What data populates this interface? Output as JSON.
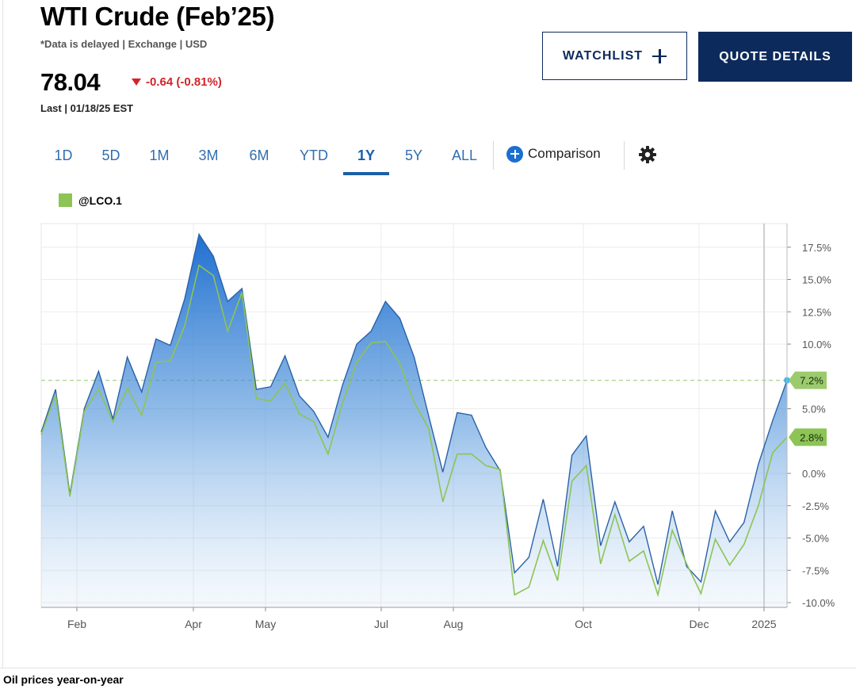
{
  "header": {
    "title": "WTI Crude (Feb’25)",
    "subtitle": "*Data is delayed | Exchange | USD",
    "price": "78.04",
    "change": "-0.64 (-0.81%)",
    "last_time": "Last | 01/18/25 EST"
  },
  "buttons": {
    "watchlist": "WATCHLIST",
    "quote_details": "QUOTE DETAILS"
  },
  "colors": {
    "navy": "#0d2a5c",
    "down": "#d0262b",
    "blue_series": "#2a6fc4",
    "green_series": "#8cc455",
    "tab_blue": "#2f6fb0"
  },
  "icons": {
    "watchlist": "plus-icon",
    "comparison": "circle-plus-icon",
    "settings": "gear-icon",
    "change": "down-triangle-icon"
  },
  "tabs": [
    {
      "label": "1D",
      "active": false
    },
    {
      "label": "5D",
      "active": false
    },
    {
      "label": "1M",
      "active": false
    },
    {
      "label": "3M",
      "active": false
    },
    {
      "label": "6M",
      "active": false
    },
    {
      "label": "YTD",
      "active": false
    },
    {
      "label": "1Y",
      "active": true
    },
    {
      "label": "5Y",
      "active": false
    },
    {
      "label": "ALL",
      "active": false
    }
  ],
  "comparison_label": "Comparison",
  "legend": {
    "label": "@LCO.1"
  },
  "caption": "Oil prices year-on-year",
  "chart_data": {
    "type": "area",
    "ylim": [
      -10,
      17.5
    ],
    "yticks": [
      17.5,
      15,
      12.5,
      10,
      5,
      0,
      -2.5,
      -5,
      -7.5,
      -10
    ],
    "ytick_labels": [
      "17.5%",
      "15.0%",
      "12.5%",
      "10.0%",
      "5.0%",
      "0.0%",
      "-2.5%",
      "-5.0%",
      "-7.5%",
      "-10.0%"
    ],
    "x_tick_labels": [
      "Feb",
      "Apr",
      "May",
      "Jul",
      "Aug",
      "Oct",
      "Dec",
      "2025"
    ],
    "grid": true,
    "series": [
      {
        "style": "area",
        "values": [
          3.2,
          6.5,
          -1.6,
          5.0,
          7.9,
          4.2,
          9.0,
          6.3,
          10.4,
          9.9,
          13.5,
          18.5,
          16.8,
          13.3,
          14.3,
          6.5,
          6.7,
          9.1,
          6.0,
          4.8,
          2.8,
          6.8,
          10.0,
          11.0,
          13.3,
          12.0,
          9.0,
          4.5,
          0.1,
          4.7,
          4.5,
          2.0,
          0.2,
          -7.7,
          -6.5,
          -2.0,
          -7.2,
          1.4,
          2.9,
          -5.6,
          -2.2,
          -5.3,
          -4.1,
          -8.6,
          -2.9,
          -7.2,
          -8.4,
          -2.9,
          -5.3,
          -3.8,
          0.7,
          4.1,
          7.2
        ],
        "last_label": "7.2%"
      },
      {
        "name": "@LCO.1",
        "style": "line",
        "values": [
          3.0,
          6.1,
          -1.8,
          4.8,
          6.5,
          4.0,
          6.6,
          4.5,
          8.6,
          8.7,
          11.4,
          16.1,
          15.3,
          11.0,
          14.0,
          5.8,
          5.6,
          7.0,
          4.6,
          4.0,
          1.5,
          5.4,
          8.6,
          10.1,
          10.2,
          8.5,
          5.5,
          3.5,
          -2.2,
          1.5,
          1.5,
          0.6,
          0.3,
          -9.4,
          -8.8,
          -5.2,
          -8.3,
          -0.6,
          0.6,
          -7.0,
          -3.2,
          -6.8,
          -6.0,
          -9.4,
          -4.4,
          -7.0,
          -9.3,
          -5.1,
          -7.1,
          -5.5,
          -2.5,
          1.6,
          2.8
        ],
        "last_label": "2.8%"
      }
    ],
    "reference_line": 7.2
  }
}
